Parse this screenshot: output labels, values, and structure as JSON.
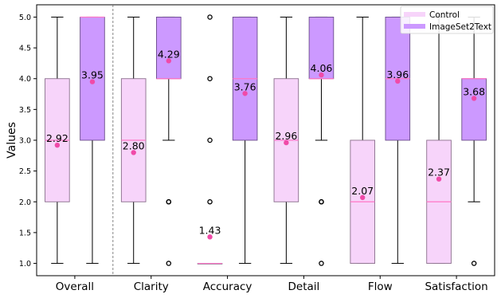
{
  "chart_data": {
    "type": "box",
    "ylabel": "Values",
    "xlabel": "",
    "title": "",
    "ylim": [
      0.8,
      5.2
    ],
    "yticks": [
      "1.0",
      "1.5",
      "2.0",
      "2.5",
      "3.0",
      "3.5",
      "4.0",
      "4.5",
      "5.0"
    ],
    "categories": [
      "Overall",
      "Clarity",
      "Accuracy",
      "Detail",
      "Flow",
      "Satisfaction"
    ],
    "legend": {
      "position": "top-right"
    },
    "grid": false,
    "series": [
      {
        "name": "Control",
        "color": "#f7d4fa",
        "edge": "#8a6e8c",
        "mean_color": "#f04aa8",
        "median_color": "#ff77c6",
        "boxes": [
          {
            "whisker_low": 1.0,
            "q1": 2.0,
            "median": 3.0,
            "q3": 4.0,
            "whisker_high": 5.0,
            "mean": 2.92,
            "mean_label": "2.92",
            "outliers": []
          },
          {
            "whisker_low": 1.0,
            "q1": 2.0,
            "median": 3.0,
            "q3": 4.0,
            "whisker_high": 5.0,
            "mean": 2.8,
            "mean_label": "2.80",
            "outliers": []
          },
          {
            "whisker_low": 1.0,
            "q1": 1.0,
            "median": 1.0,
            "q3": 1.0,
            "whisker_high": 1.0,
            "mean": 1.43,
            "mean_label": "1.43",
            "outliers": [
              2.0,
              3.0,
              4.0,
              5.0
            ]
          },
          {
            "whisker_low": 1.0,
            "q1": 2.0,
            "median": 3.0,
            "q3": 4.0,
            "whisker_high": 5.0,
            "mean": 2.96,
            "mean_label": "2.96",
            "outliers": []
          },
          {
            "whisker_low": 1.0,
            "q1": 1.0,
            "median": 2.0,
            "q3": 3.0,
            "whisker_high": 5.0,
            "mean": 2.07,
            "mean_label": "2.07",
            "outliers": []
          },
          {
            "whisker_low": 1.0,
            "q1": 1.0,
            "median": 2.0,
            "q3": 3.0,
            "whisker_high": 5.0,
            "mean": 2.37,
            "mean_label": "2.37",
            "outliers": []
          }
        ]
      },
      {
        "name": "ImageSet2Text",
        "color": "#cc99ff",
        "edge": "#6a4c8a",
        "mean_color": "#f04aa8",
        "median_color": "#ff77c6",
        "boxes": [
          {
            "whisker_low": 1.0,
            "q1": 3.0,
            "median": 5.0,
            "q3": 5.0,
            "whisker_high": 5.0,
            "mean": 3.95,
            "mean_label": "3.95",
            "outliers": []
          },
          {
            "whisker_low": 3.0,
            "q1": 4.0,
            "median": 4.0,
            "q3": 5.0,
            "whisker_high": 5.0,
            "mean": 4.29,
            "mean_label": "4.29",
            "outliers": [
              1.0,
              2.0,
              2.0
            ]
          },
          {
            "whisker_low": 1.0,
            "q1": 3.0,
            "median": 4.0,
            "q3": 5.0,
            "whisker_high": 5.0,
            "mean": 3.76,
            "mean_label": "3.76",
            "outliers": []
          },
          {
            "whisker_low": 3.0,
            "q1": 4.0,
            "median": 4.0,
            "q3": 5.0,
            "whisker_high": 5.0,
            "mean": 4.06,
            "mean_label": "4.06",
            "outliers": [
              1.0,
              2.0,
              2.0
            ]
          },
          {
            "whisker_low": 1.0,
            "q1": 3.0,
            "median": 4.0,
            "q3": 5.0,
            "whisker_high": 5.0,
            "mean": 3.96,
            "mean_label": "3.96",
            "outliers": []
          },
          {
            "whisker_low": 2.0,
            "q1": 3.0,
            "median": 4.0,
            "q3": 4.0,
            "whisker_high": 5.0,
            "mean": 3.68,
            "mean_label": "3.68",
            "outliers": [
              1.0
            ]
          }
        ]
      }
    ],
    "separator_after_category": "Overall"
  }
}
